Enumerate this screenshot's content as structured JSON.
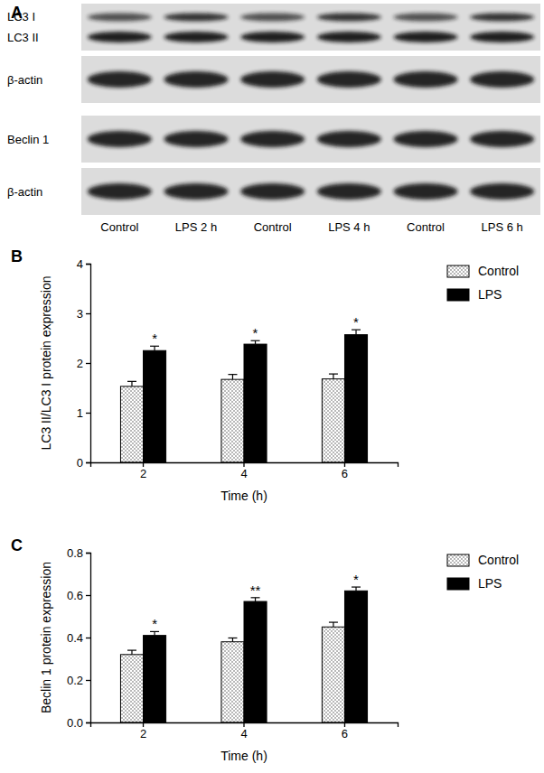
{
  "blot": {
    "panel_label": "A",
    "strips": [
      {
        "labels": [
          "LC3 I",
          "LC3 II"
        ]
      },
      {
        "labels": [
          "β-actin"
        ]
      },
      {
        "labels": [
          "Beclin 1"
        ]
      },
      {
        "labels": [
          "β-actin"
        ]
      }
    ],
    "lanes": [
      "Control",
      "LPS 2 h",
      "Control",
      "LPS 4 h",
      "Control",
      "LPS 6 h"
    ]
  },
  "chart_data": [
    {
      "type": "bar",
      "panel_label": "B",
      "x_label": "Time (h)",
      "y_label": "LC3 II/LC3 I protein expression",
      "categories": [
        "2",
        "4",
        "6"
      ],
      "series": [
        {
          "name": "Control",
          "color": "#b8b8b8",
          "values": [
            1.53,
            1.67,
            1.68
          ],
          "errors": [
            0.1,
            0.1,
            0.1
          ]
        },
        {
          "name": "LPS",
          "color": "#000000",
          "values": [
            2.25,
            2.38,
            2.57
          ],
          "errors": [
            0.09,
            0.07,
            0.1
          ],
          "sig_labels": [
            "*",
            "*",
            "*"
          ]
        }
      ],
      "ylim": [
        0,
        4
      ],
      "yticks": [
        0,
        1,
        2,
        3,
        4
      ],
      "legend": "top-right"
    },
    {
      "type": "bar",
      "panel_label": "C",
      "x_label": "Time (h)",
      "y_label": "Beclin 1 protein expression",
      "categories": [
        "2",
        "4",
        "6"
      ],
      "series": [
        {
          "name": "Control",
          "color": "#b8b8b8",
          "values": [
            0.32,
            0.38,
            0.45
          ],
          "errors": [
            0.02,
            0.018,
            0.022
          ]
        },
        {
          "name": "LPS",
          "color": "#000000",
          "values": [
            0.41,
            0.57,
            0.62
          ],
          "errors": [
            0.018,
            0.018,
            0.018
          ],
          "sig_labels": [
            "*",
            "**",
            "*"
          ]
        }
      ],
      "ylim": [
        0,
        0.8
      ],
      "yticks": [
        {
          "value": 0,
          "label": "0.0"
        },
        0.2,
        0.4,
        0.6,
        0.8
      ],
      "legend": "top-right"
    }
  ]
}
